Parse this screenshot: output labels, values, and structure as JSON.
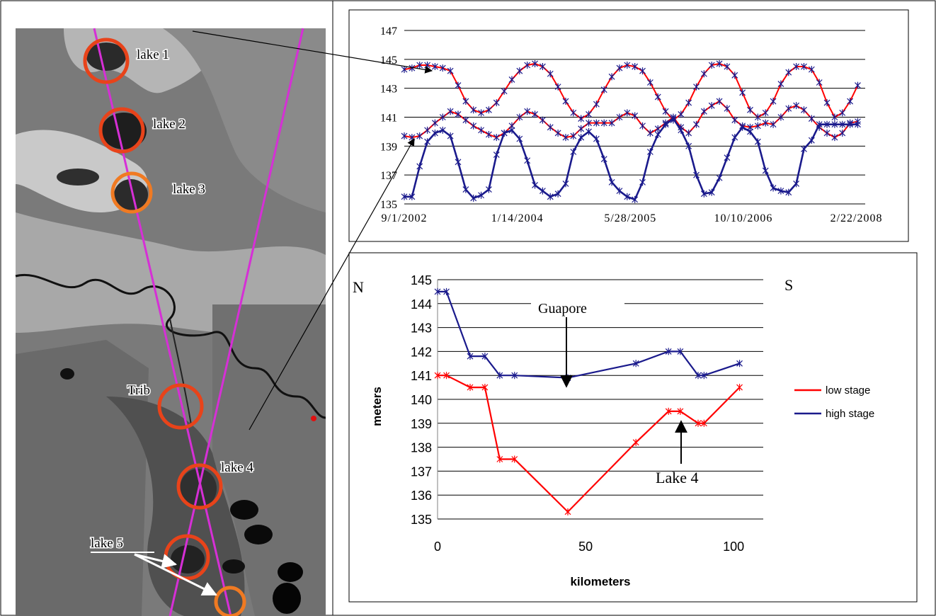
{
  "colors": {
    "low": "#ff0000",
    "high": "#1a1a8c",
    "track": "#d62fd6",
    "circle_red": "#e8431a",
    "circle_orange": "#f07a22",
    "grid": "#000000"
  },
  "map": {
    "labels": {
      "lake1": "lake 1",
      "lake2": "lake 2",
      "lake3": "lake 3",
      "trib": "Trib",
      "lake4": "lake 4",
      "lake5": "lake 5"
    }
  },
  "chart_data": [
    {
      "type": "line",
      "x_type": "date",
      "xticks": [
        "9/1/2002",
        "1/14/2004",
        "5/28/2005",
        "10/10/2006",
        "2/22/2008"
      ],
      "xlim": [
        "2002-09-01",
        "2008-04-01"
      ],
      "ylim": [
        135,
        147
      ],
      "yticks": [
        135,
        137,
        139,
        141,
        143,
        145,
        147
      ],
      "grid": true,
      "series": [
        {
          "color": "red",
          "x": [
            "2002-09-01",
            "2002-10-05",
            "2002-11-08",
            "2002-12-12",
            "2003-01-15",
            "2003-02-18",
            "2003-03-24",
            "2003-04-27",
            "2003-05-31",
            "2003-07-04",
            "2003-08-07",
            "2003-09-10",
            "2003-10-14",
            "2003-11-17",
            "2003-12-21",
            "2004-01-24",
            "2004-02-27",
            "2004-04-01",
            "2004-05-05",
            "2004-06-08",
            "2004-07-12",
            "2004-08-15",
            "2004-09-18",
            "2004-10-22",
            "2004-11-25",
            "2004-12-29",
            "2005-02-01",
            "2005-03-07",
            "2005-04-10",
            "2005-05-14",
            "2005-06-17",
            "2005-07-21",
            "2005-08-24",
            "2005-09-27",
            "2005-10-31",
            "2005-12-04",
            "2006-01-07",
            "2006-02-10",
            "2006-03-16",
            "2006-04-19",
            "2006-05-23",
            "2006-06-26",
            "2006-07-30",
            "2006-09-02",
            "2006-10-06",
            "2006-11-09",
            "2006-12-13",
            "2007-01-16",
            "2007-02-19",
            "2007-03-25",
            "2007-04-28",
            "2007-06-01",
            "2007-07-05",
            "2007-08-08",
            "2007-09-11",
            "2007-10-15",
            "2007-11-18",
            "2007-12-22",
            "2008-01-25",
            "2008-02-28"
          ],
          "y": [
            144.3,
            144.4,
            144.6,
            144.6,
            144.5,
            144.4,
            144.2,
            143.2,
            142.1,
            141.5,
            141.3,
            141.5,
            142.0,
            142.8,
            143.6,
            144.2,
            144.6,
            144.7,
            144.5,
            144.0,
            143.1,
            142.1,
            141.3,
            140.9,
            141.2,
            141.9,
            142.9,
            143.8,
            144.4,
            144.6,
            144.5,
            144.2,
            143.4,
            142.4,
            141.4,
            140.8,
            141.2,
            142.0,
            143.1,
            144.0,
            144.6,
            144.7,
            144.5,
            143.9,
            142.7,
            141.5,
            141.0,
            141.3,
            142.1,
            143.3,
            144.1,
            144.5,
            144.5,
            144.3,
            143.4,
            142.0,
            141.0,
            141.3,
            142.1,
            143.2
          ]
        },
        {
          "color": "red",
          "x": [
            "2002-09-01",
            "2002-10-05",
            "2002-11-08",
            "2002-12-12",
            "2003-01-15",
            "2003-02-18",
            "2003-03-24",
            "2003-04-27",
            "2003-05-31",
            "2003-07-04",
            "2003-08-07",
            "2003-09-10",
            "2003-10-14",
            "2003-11-17",
            "2003-12-21",
            "2004-01-24",
            "2004-02-27",
            "2004-04-01",
            "2004-05-05",
            "2004-06-08",
            "2004-07-12",
            "2004-08-15",
            "2004-09-18",
            "2004-10-22",
            "2004-11-25",
            "2004-12-29",
            "2005-02-01",
            "2005-03-07",
            "2005-04-10",
            "2005-05-14",
            "2005-06-17",
            "2005-07-21",
            "2005-08-24",
            "2005-09-27",
            "2005-10-31",
            "2005-12-04",
            "2006-01-07",
            "2006-02-10",
            "2006-03-16",
            "2006-04-19",
            "2006-05-23",
            "2006-06-26",
            "2006-07-30",
            "2006-09-02",
            "2006-10-06",
            "2006-11-09",
            "2006-12-13",
            "2007-01-16",
            "2007-02-19",
            "2007-03-25",
            "2007-04-28",
            "2007-06-01",
            "2007-07-05",
            "2007-08-08",
            "2007-09-11",
            "2007-10-15",
            "2007-11-18",
            "2007-12-22",
            "2008-01-25",
            "2008-02-28"
          ],
          "y": [
            139.7,
            139.6,
            139.7,
            140.1,
            140.6,
            141.0,
            141.4,
            141.2,
            140.8,
            140.4,
            140.1,
            139.8,
            139.6,
            139.9,
            140.4,
            141.0,
            141.4,
            141.2,
            140.8,
            140.3,
            139.9,
            139.6,
            139.7,
            140.2,
            140.6,
            140.6,
            140.6,
            140.6,
            141.0,
            141.3,
            141.1,
            140.4,
            139.9,
            140.2,
            140.6,
            141.0,
            140.3,
            139.9,
            140.5,
            141.4,
            141.8,
            142.1,
            141.6,
            140.8,
            140.4,
            140.3,
            140.4,
            140.6,
            140.5,
            141.0,
            141.6,
            141.8,
            141.5,
            140.9,
            140.3,
            139.9,
            139.6,
            139.9,
            140.6,
            140.7
          ]
        },
        {
          "color": "blue",
          "x": [
            "2002-09-01",
            "2002-10-05",
            "2002-11-08",
            "2002-12-12",
            "2003-01-15",
            "2003-02-18",
            "2003-03-24",
            "2003-04-27",
            "2003-05-31",
            "2003-07-04",
            "2003-08-07",
            "2003-09-10",
            "2003-10-14",
            "2003-11-17",
            "2003-12-21",
            "2004-01-24",
            "2004-02-27",
            "2004-04-01",
            "2004-05-05",
            "2004-06-08",
            "2004-07-12",
            "2004-08-15",
            "2004-09-18",
            "2004-10-22",
            "2004-11-25",
            "2004-12-29",
            "2005-02-01",
            "2005-03-07",
            "2005-04-10",
            "2005-05-14",
            "2005-06-17",
            "2005-07-21",
            "2005-08-24",
            "2005-09-27",
            "2005-10-31",
            "2005-12-04",
            "2006-01-07",
            "2006-02-10",
            "2006-03-16",
            "2006-04-19",
            "2006-05-23",
            "2006-06-26",
            "2006-07-30",
            "2006-09-02",
            "2006-10-06",
            "2006-11-09",
            "2006-12-13",
            "2007-01-16",
            "2007-02-19",
            "2007-03-25",
            "2007-04-28",
            "2007-06-01",
            "2007-07-05",
            "2007-08-08",
            "2007-09-11",
            "2007-10-15",
            "2007-11-18",
            "2007-12-22",
            "2008-01-25",
            "2008-02-28"
          ],
          "y": [
            135.5,
            135.5,
            137.6,
            139.3,
            139.9,
            140.1,
            139.7,
            137.9,
            136.0,
            135.4,
            135.6,
            136.0,
            138.4,
            139.9,
            140.1,
            139.5,
            138.0,
            136.3,
            135.9,
            135.5,
            135.7,
            136.4,
            138.6,
            139.6,
            140.0,
            139.5,
            138.1,
            136.5,
            135.9,
            135.5,
            135.3,
            136.5,
            138.6,
            139.8,
            140.5,
            140.9,
            140.1,
            139.0,
            137.0,
            135.7,
            135.8,
            136.8,
            138.2,
            139.6,
            140.3,
            140.0,
            139.3,
            137.3,
            136.1,
            135.9,
            135.8,
            136.4,
            138.8,
            139.4,
            140.5,
            140.5,
            140.5,
            140.5,
            140.5,
            140.5
          ]
        }
      ]
    },
    {
      "type": "line",
      "xlabel": "kilometers",
      "ylabel": "meters",
      "xlim": [
        0,
        110
      ],
      "ylim": [
        135,
        145
      ],
      "xticks": [
        0,
        50,
        100
      ],
      "yticks": [
        135,
        136,
        137,
        138,
        139,
        140,
        141,
        142,
        143,
        144,
        145
      ],
      "grid": true,
      "legend": "right",
      "series": [
        {
          "name": "low stage",
          "color": "red",
          "x": [
            0,
            3,
            11,
            16,
            21,
            26,
            44,
            67,
            78,
            82,
            88,
            90,
            102
          ],
          "y": [
            141.0,
            141.0,
            140.5,
            140.5,
            137.5,
            137.5,
            135.3,
            138.2,
            139.5,
            139.5,
            139.0,
            139.0,
            140.5
          ]
        },
        {
          "name": "high stage",
          "color": "blue",
          "x": [
            0,
            3,
            11,
            16,
            21,
            26,
            44,
            67,
            78,
            82,
            88,
            90,
            102
          ],
          "y": [
            144.5,
            144.5,
            141.8,
            141.8,
            141.0,
            141.0,
            140.9,
            141.5,
            142.0,
            142.0,
            141.0,
            141.0,
            141.5
          ]
        }
      ],
      "annotations": {
        "north": "N",
        "south": "S",
        "guapore": "Guapore",
        "lake4": "Lake 4"
      }
    }
  ]
}
